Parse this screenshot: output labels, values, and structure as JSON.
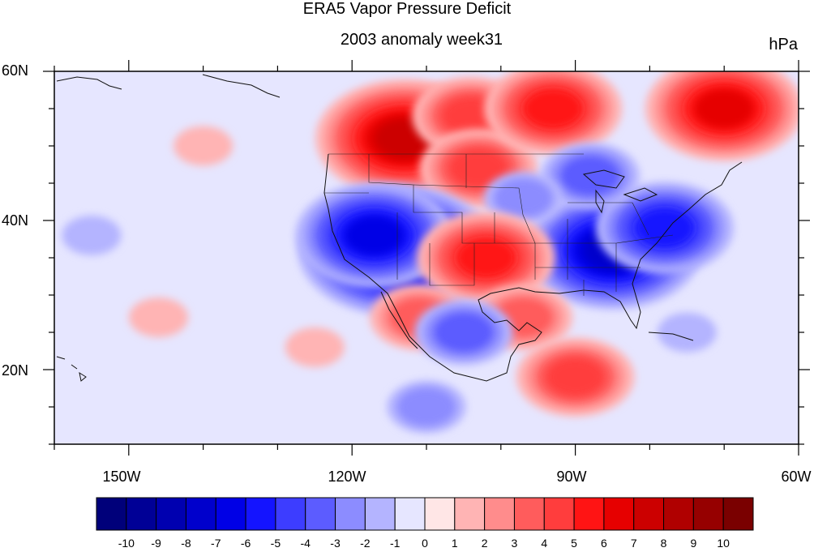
{
  "title": "ERA5 Vapor Pressure Deficit",
  "subtitle": "2003 anomaly week31",
  "units": "hPa",
  "lat_labels": [
    "60N",
    "40N",
    "20N"
  ],
  "lon_labels": [
    "150W",
    "120W",
    "90W",
    "60W"
  ],
  "colorbar": {
    "labels": [
      "-10",
      "-9",
      "-8",
      "-7",
      "-6",
      "-5",
      "-4",
      "-3",
      "-2",
      "-1",
      "0",
      "1",
      "2",
      "3",
      "4",
      "5",
      "6",
      "7",
      "8",
      "9",
      "10"
    ],
    "colors": [
      "#00007a",
      "#000096",
      "#0000b0",
      "#0000cc",
      "#0000e6",
      "#1414ff",
      "#3d3dff",
      "#5c5cff",
      "#8c8cff",
      "#b4b4ff",
      "#e6e6ff",
      "#ffe6e6",
      "#ffb4b4",
      "#ff8c8c",
      "#ff5c5c",
      "#ff3d3d",
      "#ff1414",
      "#e60000",
      "#cc0000",
      "#b00000",
      "#960000",
      "#7a0000"
    ]
  },
  "map_data": {
    "lon_range": [
      -160,
      -60
    ],
    "lat_range": [
      10,
      60
    ],
    "blobs": [
      {
        "lon": -110,
        "lat": 53,
        "level": 4
      },
      {
        "lon": -113,
        "lat": 51,
        "level": 7
      },
      {
        "lon": -104,
        "lat": 54,
        "level": 4
      },
      {
        "lon": -103,
        "lat": 47,
        "level": 4
      },
      {
        "lon": -93,
        "lat": 55,
        "level": 5
      },
      {
        "lon": -70,
        "lat": 55,
        "level": 6
      },
      {
        "lon": -114,
        "lat": 36,
        "level": -8
      },
      {
        "lon": -117,
        "lat": 38,
        "level": -6
      },
      {
        "lon": -85,
        "lat": 36,
        "level": -7
      },
      {
        "lon": -78,
        "lat": 39,
        "level": -5
      },
      {
        "lon": -88,
        "lat": 46,
        "level": -3
      },
      {
        "lon": -97,
        "lat": 43,
        "level": -2
      },
      {
        "lon": -102,
        "lat": 35,
        "level": 5
      },
      {
        "lon": -97,
        "lat": 27,
        "level": 3
      },
      {
        "lon": -111,
        "lat": 27,
        "level": 3
      },
      {
        "lon": -105,
        "lat": 25,
        "level": -3
      },
      {
        "lon": -90,
        "lat": 19,
        "level": 4
      },
      {
        "lon": -146,
        "lat": 27,
        "level": 1
      },
      {
        "lon": -125,
        "lat": 23,
        "level": 1
      },
      {
        "lon": -155,
        "lat": 38,
        "level": -1
      },
      {
        "lon": -110,
        "lat": 15,
        "level": -2
      },
      {
        "lon": -140,
        "lat": 50,
        "level": 1
      },
      {
        "lon": -75,
        "lat": 25,
        "level": -1
      }
    ]
  }
}
